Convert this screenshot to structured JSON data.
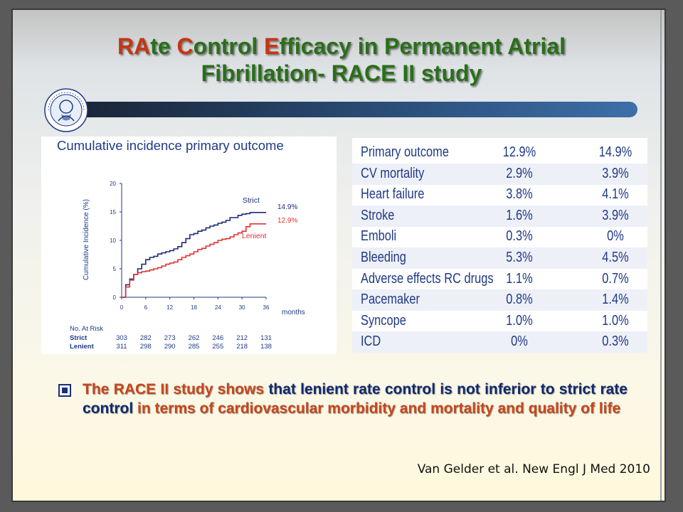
{
  "title": {
    "part1_red": "RA",
    "part2_green": "te ",
    "part3_red": "C",
    "part4_green": "ontrol ",
    "part5_red": "E",
    "part6_green": "fficacy in Permanent Atrial",
    "line2": "Fibrillation- RACE II study"
  },
  "colors": {
    "title_green": "#2a6f1a",
    "title_red": "#c83410",
    "table_text": "#1f3a86",
    "strict_line": "#1c2a7a",
    "lenient_line": "#e03030",
    "bullet_orange": "#c8461a",
    "bullet_navy": "#102a6e"
  },
  "logo": {
    "icon": "medical-society-seal-logo"
  },
  "chart_data": {
    "type": "line",
    "title": "Cumulative incidence primary outcome",
    "xlabel": "months",
    "ylabel": "Cumulative Incidence (%)",
    "xlim": [
      0,
      36
    ],
    "ylim": [
      0,
      20
    ],
    "x_ticks": [
      "0",
      "6",
      "12",
      "18",
      "24",
      "30",
      "36"
    ],
    "y_ticks": [
      "0",
      "5",
      "10",
      "15",
      "20"
    ],
    "series": [
      {
        "name": "Strict",
        "end_label": "14.9%",
        "x": [
          0,
          1,
          2,
          3,
          4,
          5,
          6,
          7,
          8,
          9,
          10,
          11,
          12,
          13,
          14,
          15,
          16,
          17,
          18,
          19,
          20,
          21,
          22,
          23,
          24,
          25,
          26,
          27,
          28,
          29,
          30,
          31,
          32,
          33,
          34,
          35,
          36
        ],
        "values": [
          0,
          2.2,
          3.2,
          4.0,
          5.0,
          5.8,
          6.6,
          7.0,
          7.2,
          7.6,
          7.8,
          8.0,
          8.2,
          8.5,
          8.9,
          9.6,
          10.3,
          11.0,
          11.2,
          11.6,
          11.8,
          12.2,
          12.5,
          12.7,
          13.0,
          13.2,
          13.5,
          14.0,
          14.0,
          14.4,
          14.6,
          14.7,
          14.9,
          14.9,
          14.9,
          14.9,
          14.9
        ]
      },
      {
        "name": "Lenient",
        "end_label": "12.9%",
        "x": [
          0,
          1,
          2,
          3,
          4,
          5,
          6,
          7,
          8,
          9,
          10,
          11,
          12,
          13,
          14,
          15,
          16,
          17,
          18,
          19,
          20,
          21,
          22,
          23,
          24,
          25,
          26,
          27,
          28,
          29,
          30,
          31,
          32,
          33,
          34,
          35,
          36
        ],
        "values": [
          0,
          1.8,
          3.0,
          4.0,
          4.3,
          4.5,
          4.6,
          4.8,
          5.0,
          5.2,
          5.5,
          5.8,
          6.0,
          6.2,
          6.6,
          7.0,
          7.3,
          7.6,
          8.0,
          8.4,
          8.6,
          9.0,
          9.3,
          9.6,
          10.0,
          10.2,
          10.3,
          10.6,
          11.0,
          11.3,
          11.6,
          12.4,
          12.9,
          12.9,
          12.9,
          12.9,
          12.9
        ]
      }
    ],
    "at_risk": {
      "label": "No. At Risk",
      "rows": [
        {
          "name": "Strict",
          "values": [
            "303",
            "282",
            "273",
            "262",
            "246",
            "212",
            "131"
          ]
        },
        {
          "name": "Lenient",
          "values": [
            "311",
            "298",
            "290",
            "285",
            "255",
            "218",
            "138"
          ]
        }
      ]
    }
  },
  "table": {
    "rows": [
      {
        "label": "Primary outcome",
        "v1": "12.9%",
        "v2": "14.9%"
      },
      {
        "label": "CV mortality",
        "v1": "2.9%",
        "v2": "3.9%"
      },
      {
        "label": "Heart failure",
        "v1": "3.8%",
        "v2": "4.1%"
      },
      {
        "label": "Stroke",
        "v1": "1.6%",
        "v2": "3.9%"
      },
      {
        "label": "Emboli",
        "v1": "0.3%",
        "v2": "0%"
      },
      {
        "label": "Bleeding",
        "v1": "5.3%",
        "v2": "4.5%"
      },
      {
        "label": "Adverse effects RC drugs",
        "v1": "1.1%",
        "v2": "0.7%"
      },
      {
        "label": "Pacemaker",
        "v1": "0.8%",
        "v2": "1.4%"
      },
      {
        "label": "Syncope",
        "v1": "1.0%",
        "v2": "1.0%"
      },
      {
        "label": "ICD",
        "v1": "0%",
        "v2": "0.3%"
      }
    ]
  },
  "bullet": {
    "icon": "checkbox-bullet-icon",
    "seg1": "The RACE II study shows ",
    "seg2": "that lenient rate control is not inferior to strict rate control ",
    "seg3": "in terms of cardiovascular morbidity and mortality and quality of life"
  },
  "citation": "Van Gelder et al. New Engl J Med 2010"
}
